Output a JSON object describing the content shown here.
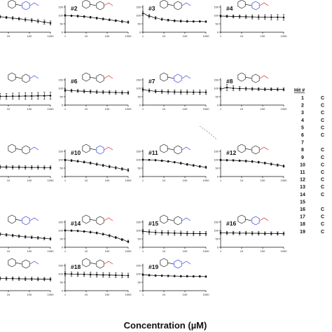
{
  "chart_data": {
    "type": "scatter",
    "xlabel": "Concentration (µM)",
    "xscale": "log",
    "xlim": [
      1,
      1000
    ],
    "ylim": [
      0,
      150
    ],
    "x": [
      1,
      2,
      4,
      8,
      16,
      32,
      64,
      128,
      256,
      512,
      1000
    ],
    "x_ticks": [
      "1",
      "10",
      "100",
      "1000"
    ],
    "y_ticks": [
      "0",
      "50",
      "100",
      "150"
    ],
    "panels": [
      {
        "label": "",
        "col": 0,
        "row": 0,
        "values": [
          102,
          97,
          92,
          88,
          84,
          80,
          75,
          71,
          66,
          60,
          55
        ],
        "err": [
          6,
          7,
          8,
          7,
          9,
          8,
          9,
          10,
          11,
          12,
          12
        ]
      },
      {
        "label": "#2",
        "col": 1,
        "row": 0,
        "values": [
          100,
          98,
          96,
          93,
          89,
          84,
          79,
          74,
          69,
          64,
          60
        ],
        "err": [
          5,
          5,
          6,
          6,
          6,
          6,
          6,
          6,
          6,
          7,
          7
        ]
      },
      {
        "label": "#3",
        "col": 2,
        "row": 0,
        "values": [
          112,
          96,
          85,
          77,
          72,
          68,
          66,
          65,
          64,
          64,
          63
        ],
        "err": [
          12,
          10,
          8,
          7,
          6,
          6,
          6,
          6,
          5,
          5,
          5
        ]
      },
      {
        "label": "#4",
        "col": 3,
        "row": 0,
        "values": [
          96,
          95,
          94,
          93,
          92,
          91,
          90,
          90,
          89,
          89,
          88
        ],
        "err": [
          6,
          7,
          9,
          10,
          11,
          12,
          13,
          14,
          15,
          16,
          17
        ]
      },
      {
        "label": "",
        "col": 0,
        "row": 1,
        "values": [
          50,
          51,
          52,
          52,
          53,
          53,
          54,
          54,
          55,
          55,
          56
        ],
        "err": [
          12,
          14,
          16,
          17,
          18,
          19,
          19,
          20,
          20,
          21,
          21
        ]
      },
      {
        "label": "#6",
        "col": 1,
        "row": 1,
        "values": [
          88,
          86,
          84,
          82,
          80,
          78,
          77,
          76,
          75,
          74,
          73
        ],
        "err": [
          8,
          9,
          9,
          10,
          10,
          10,
          10,
          10,
          10,
          10,
          10
        ]
      },
      {
        "label": "#7",
        "col": 2,
        "row": 1,
        "values": [
          92,
          86,
          82,
          80,
          79,
          78,
          77,
          77,
          76,
          76,
          76
        ],
        "err": [
          9,
          10,
          10,
          11,
          12,
          12,
          12,
          12,
          12,
          13,
          13
        ]
      },
      {
        "label": "#8",
        "col": 3,
        "row": 1,
        "values": [
          96,
          104,
          100,
          98,
          97,
          96,
          95,
          94,
          94,
          93,
          93
        ],
        "err": [
          12,
          18,
          14,
          12,
          10,
          9,
          9,
          9,
          9,
          9,
          9
        ]
      },
      {
        "label": "",
        "col": 0,
        "row": 2,
        "values": [
          60,
          58,
          57,
          56,
          55,
          55,
          54,
          54,
          54,
          53,
          53
        ],
        "err": [
          10,
          10,
          10,
          10,
          10,
          10,
          10,
          10,
          10,
          10,
          10
        ]
      },
      {
        "label": "#10",
        "col": 1,
        "row": 2,
        "values": [
          98,
          95,
          91,
          86,
          80,
          73,
          66,
          59,
          52,
          45,
          38
        ],
        "err": [
          5,
          6,
          6,
          6,
          7,
          7,
          7,
          8,
          8,
          8,
          9
        ]
      },
      {
        "label": "#11",
        "col": 2,
        "row": 2,
        "values": [
          100,
          99,
          97,
          94,
          90,
          85,
          79,
          72,
          66,
          60,
          55
        ],
        "err": [
          4,
          4,
          5,
          5,
          5,
          5,
          6,
          6,
          6,
          6,
          7
        ]
      },
      {
        "label": "#12",
        "col": 3,
        "row": 2,
        "values": [
          98,
          97,
          96,
          94,
          92,
          89,
          85,
          80,
          74,
          68,
          62
        ],
        "err": [
          5,
          5,
          5,
          5,
          6,
          6,
          6,
          6,
          7,
          7,
          7
        ]
      },
      {
        "label": "",
        "col": 0,
        "row": 3,
        "values": [
          85,
          82,
          78,
          74,
          70,
          66,
          62,
          59,
          56,
          53,
          50
        ],
        "err": [
          8,
          8,
          8,
          8,
          8,
          8,
          8,
          8,
          8,
          8,
          8
        ]
      },
      {
        "label": "#14",
        "col": 1,
        "row": 3,
        "values": [
          100,
          99,
          97,
          94,
          90,
          85,
          78,
          69,
          58,
          46,
          34
        ],
        "err": [
          4,
          5,
          5,
          5,
          6,
          6,
          6,
          7,
          7,
          7,
          8
        ]
      },
      {
        "label": "#15",
        "col": 2,
        "row": 3,
        "values": [
          95,
          91,
          88,
          86,
          85,
          84,
          83,
          82,
          82,
          81,
          81
        ],
        "err": [
          12,
          13,
          13,
          13,
          13,
          13,
          13,
          13,
          13,
          13,
          13
        ]
      },
      {
        "label": "#16",
        "col": 3,
        "row": 3,
        "values": [
          86,
          85,
          85,
          84,
          84,
          83,
          83,
          82,
          82,
          82,
          81
        ],
        "err": [
          10,
          10,
          10,
          10,
          10,
          10,
          10,
          10,
          10,
          10,
          10
        ]
      },
      {
        "label": "",
        "col": 0,
        "row": 4,
        "values": [
          75,
          74,
          73,
          72,
          72,
          71,
          70,
          70,
          69,
          69,
          68
        ],
        "err": [
          10,
          10,
          10,
          10,
          10,
          10,
          10,
          10,
          10,
          10,
          10
        ]
      },
      {
        "label": "#18",
        "col": 1,
        "row": 4,
        "values": [
          100,
          99,
          98,
          97,
          96,
          95,
          94,
          93,
          92,
          91,
          90
        ],
        "err": [
          12,
          13,
          13,
          13,
          14,
          14,
          14,
          14,
          14,
          14,
          14
        ]
      },
      {
        "label": "#19",
        "col": 2,
        "row": 4,
        "values": [
          95,
          92,
          90,
          89,
          88,
          87,
          86,
          86,
          85,
          85,
          84
        ],
        "err": [
          5,
          5,
          5,
          5,
          5,
          5,
          5,
          5,
          5,
          5,
          5
        ]
      }
    ]
  },
  "hit_table": {
    "header": "Hit #",
    "numbers": [
      "1",
      "2",
      "3",
      "4",
      "5",
      "6",
      "7",
      "8",
      "9",
      "10",
      "11",
      "12",
      "13",
      "14",
      "15",
      "16",
      "17",
      "18",
      "19"
    ],
    "suffix": [
      "C",
      "C",
      "C",
      "C",
      "C",
      "C",
      "",
      "C",
      "C",
      "C",
      "C",
      "C",
      "C",
      "C",
      "",
      "C",
      "C",
      "C",
      "C"
    ]
  }
}
